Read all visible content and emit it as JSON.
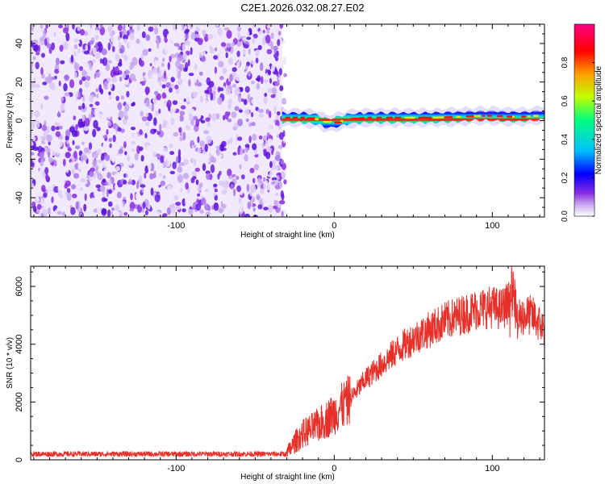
{
  "title": "C2E1.2026.032.08.27.E02",
  "chart_data": [
    {
      "type": "heatmap",
      "xlabel": "Height of straight line (km)",
      "ylabel": "Frequency (Hz)",
      "xlim": [
        -192,
        133
      ],
      "ylim": [
        -50,
        50
      ],
      "xticks": [
        -100,
        0,
        100
      ],
      "yticks": [
        -40,
        -20,
        0,
        20,
        40
      ],
      "colorbar": {
        "label": "Normalized spectral amplitude",
        "range": [
          0,
          1
        ],
        "ticks": [
          "0.0",
          "0.2",
          "0.4",
          "0.6",
          "0.8"
        ],
        "tick_values": [
          0.0,
          0.2,
          0.4,
          0.6,
          0.8
        ],
        "colormap": [
          "#ffffff",
          "#8a2be2",
          "#0000ff",
          "#00c0ff",
          "#00ff80",
          "#c0ff00",
          "#ffa000",
          "#ff0000",
          "#ff0080"
        ]
      },
      "noise_region_x": [
        -192,
        -33
      ],
      "signal_band": {
        "x_start": -33,
        "x_end": 133,
        "center_frequency": [
          [
            -33,
            1.5
          ],
          [
            -20,
            1.5
          ],
          [
            -10,
            0.5
          ],
          [
            -5,
            -1.5
          ],
          [
            0,
            -1.0
          ],
          [
            5,
            0.0
          ],
          [
            10,
            1.0
          ],
          [
            20,
            1.5
          ],
          [
            40,
            1.5
          ],
          [
            60,
            1.5
          ],
          [
            80,
            2.0
          ],
          [
            90,
            2.5
          ],
          [
            100,
            2.5
          ],
          [
            110,
            2.0
          ],
          [
            120,
            2.0
          ],
          [
            133,
            3.0
          ]
        ],
        "bandwidth_hz": 6
      }
    },
    {
      "type": "line",
      "xlabel": "Height of straight line (km)",
      "ylabel": "SNR (10 * v/v)",
      "xlim": [
        -192,
        133
      ],
      "ylim": [
        0,
        6700
      ],
      "xticks": [
        -100,
        0,
        100
      ],
      "yticks": [
        0,
        2000,
        4000,
        6000
      ],
      "series": [
        {
          "name": "SNR",
          "color": "#e8302a",
          "x": [
            -192,
            -150,
            -100,
            -50,
            -30,
            -25,
            -20,
            -10,
            0,
            10,
            20,
            30,
            40,
            50,
            60,
            70,
            80,
            90,
            100,
            105,
            110,
            113,
            116,
            120,
            125,
            130,
            133
          ],
          "y": [
            200,
            200,
            200,
            200,
            200,
            600,
            900,
            1200,
            1600,
            2100,
            2800,
            3300,
            3800,
            4200,
            4500,
            4800,
            5000,
            5200,
            5300,
            5200,
            5400,
            5800,
            4800,
            5000,
            5000,
            4700,
            4500
          ]
        }
      ]
    }
  ]
}
